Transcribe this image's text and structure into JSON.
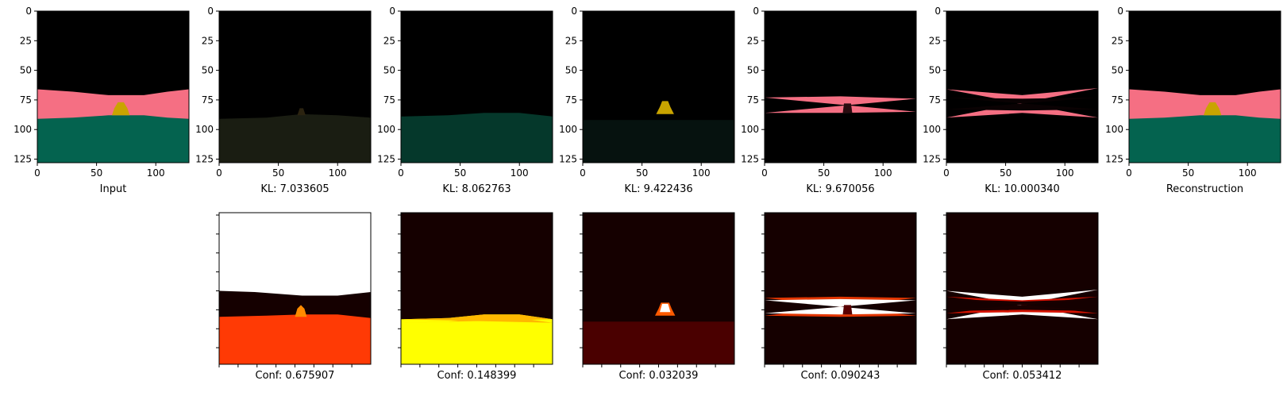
{
  "chart_data": [
    {
      "type": "image",
      "caption": "Input",
      "xticks": [
        "0",
        "50",
        "100"
      ],
      "yticks": [
        "0",
        "25",
        "50",
        "75",
        "100",
        "125"
      ],
      "xlim": [
        0,
        128
      ],
      "ylim": [
        128,
        0
      ],
      "scene": "rgb_full"
    },
    {
      "type": "image",
      "caption": "KL: 7.033605",
      "xticks": [
        "0",
        "50",
        "100"
      ],
      "yticks": [
        "0",
        "25",
        "50",
        "75",
        "100",
        "125"
      ],
      "xlim": [
        0,
        128
      ],
      "ylim": [
        128,
        0
      ],
      "scene": "dark_ground"
    },
    {
      "type": "image",
      "caption": "KL: 8.062763",
      "xticks": [
        "0",
        "50",
        "100"
      ],
      "yticks": [
        "0",
        "25",
        "50",
        "75",
        "100",
        "125"
      ],
      "xlim": [
        0,
        128
      ],
      "ylim": [
        128,
        0
      ],
      "scene": "teal_ground"
    },
    {
      "type": "image",
      "caption": "KL: 9.422436",
      "xticks": [
        "0",
        "50",
        "100"
      ],
      "yticks": [
        "0",
        "25",
        "50",
        "75",
        "100",
        "125"
      ],
      "xlim": [
        0,
        128
      ],
      "ylim": [
        128,
        0
      ],
      "scene": "object_only"
    },
    {
      "type": "image",
      "caption": "KL: 9.670056",
      "xticks": [
        "0",
        "50",
        "100"
      ],
      "yticks": [
        "0",
        "25",
        "50",
        "75",
        "100",
        "125"
      ],
      "xlim": [
        0,
        128
      ],
      "ylim": [
        128,
        0
      ],
      "scene": "pink_band"
    },
    {
      "type": "image",
      "caption": "KL: 10.000340",
      "xticks": [
        "0",
        "50",
        "100"
      ],
      "yticks": [
        "0",
        "25",
        "50",
        "75",
        "100",
        "125"
      ],
      "xlim": [
        0,
        128
      ],
      "ylim": [
        128,
        0
      ],
      "scene": "pink_edges"
    },
    {
      "type": "image",
      "caption": "Reconstruction",
      "xticks": [
        "0",
        "50",
        "100"
      ],
      "yticks": [
        "0",
        "25",
        "50",
        "75",
        "100",
        "125"
      ],
      "xlim": [
        0,
        128
      ],
      "ylim": [
        128,
        0
      ],
      "scene": "rgb_full"
    },
    {
      "type": "heatmap",
      "caption": "Conf: 0.675907",
      "colormap": "hot",
      "scene": "conf_sky_ground"
    },
    {
      "type": "heatmap",
      "caption": "Conf: 0.148399",
      "colormap": "hot",
      "scene": "conf_ground"
    },
    {
      "type": "heatmap",
      "caption": "Conf: 0.032039",
      "colormap": "hot",
      "scene": "conf_object"
    },
    {
      "type": "heatmap",
      "caption": "Conf: 0.090243",
      "colormap": "hot",
      "scene": "conf_band"
    },
    {
      "type": "heatmap",
      "caption": "Conf: 0.053412",
      "colormap": "hot",
      "scene": "conf_edges"
    }
  ],
  "colors": {
    "sky": "#000000",
    "wall_pink": "#f56f83",
    "ground_teal": "#04634f",
    "object_yellow": "#c9a400",
    "dark_ground": "#1a1d12",
    "dim_teal": "#05382b",
    "faint_teal": "#06120f",
    "hot_white": "#ffffff",
    "hot_yellow": "#ffff00",
    "hot_orange": "#ff3a05",
    "hot_red": "#c40000",
    "hot_darkred": "#3d0000",
    "hot_black": "#150000"
  }
}
